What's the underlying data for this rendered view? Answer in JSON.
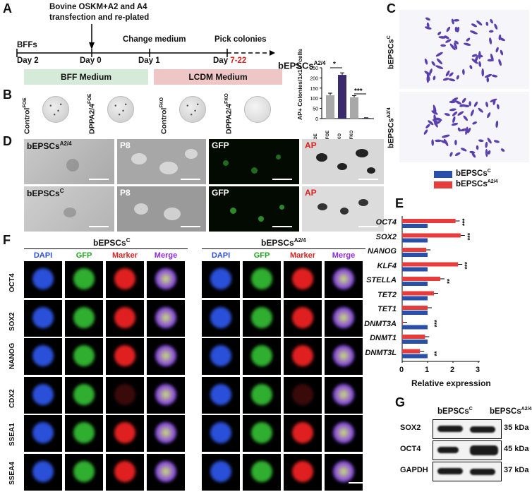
{
  "panel_labels": {
    "a": "A",
    "b": "B",
    "c": "C",
    "d": "D",
    "e": "E",
    "f": "F",
    "g": "G"
  },
  "panelA": {
    "start": "BFFs",
    "transfection_line1": "Bovine OSKM+A2 and A4",
    "transfection_line2": "transfection and re-plated",
    "change_medium": "Change medium",
    "pick_colonies": "Pick colonies",
    "result": "bEPSCs",
    "result_sup": "A2/4",
    "day_minus2": "Day 2",
    "day0": "Day 0",
    "day1": "Day 1",
    "day_pick_prefix": "Day ",
    "day_pick_range": "7-22",
    "bff_medium": "BFF Medium",
    "lcdm_medium": "LCDM  Medium"
  },
  "panelB": {
    "dishes": [
      {
        "name": "Control",
        "sup": "FOE"
      },
      {
        "name": "DPPA2/4",
        "sup": "FOE"
      },
      {
        "name": "Control",
        "sup": "FKO"
      },
      {
        "name": "DPPA2/4",
        "sup": "FKO"
      }
    ],
    "ylabel": "AP+ Colonies/1x10",
    "ylabel_sup": "4",
    "ylabel_tail": " cells",
    "sig1": "*",
    "sig2": "***",
    "yticks": [
      "0",
      "50",
      "100",
      "150",
      "200",
      "250"
    ]
  },
  "chart_data": {
    "type": "bar",
    "categories": [
      "ControlFOE",
      "DPPA2/4FOE",
      "ControlFKO",
      "DPPA2/4FKO"
    ],
    "values": [
      115,
      215,
      105,
      3
    ],
    "errors": [
      10,
      10,
      8,
      1
    ],
    "colors": [
      "#a8a8a8",
      "#3a2a6b",
      "#a8a8a8",
      "#3a2a6b"
    ],
    "ylim": [
      0,
      250
    ]
  },
  "panelC": {
    "top_label": "bEPSCs",
    "top_sup": "C",
    "bottom_label": "bEPSCs",
    "bottom_sup": "A2/4"
  },
  "panelD": {
    "row1_label": "bEPSCs",
    "row1_sup": "A2/4",
    "row2_label": "bEPSCs",
    "row2_sup": "C",
    "p8": "P8",
    "gfp": "GFP",
    "ap": "AP"
  },
  "panelE": {
    "legend": [
      {
        "name": "bEPSCs",
        "sup": "C",
        "color": "#2a4fa8"
      },
      {
        "name": "bEPSCs",
        "sup": "A2/4",
        "color": "#e83b3b"
      }
    ],
    "xlabel": "Relative expression",
    "xticks": [
      "0",
      "1",
      "2",
      "3"
    ],
    "genes": [
      "OCT4",
      "SOX2",
      "NANOG",
      "KLF4",
      "STELLA",
      "TET2",
      "TET1",
      "DNMT3A",
      "DNMT1",
      "DNMT3L"
    ],
    "control": [
      1,
      1,
      1,
      1,
      1,
      1,
      1,
      1,
      1,
      1
    ],
    "treated": [
      2.1,
      2.3,
      0.95,
      2.2,
      1.5,
      1.25,
      1.0,
      0.03,
      0.9,
      0.7
    ],
    "sig": [
      "***",
      "***",
      "",
      "***",
      "**",
      "",
      "",
      "***",
      "",
      "**"
    ]
  },
  "panelF": {
    "group1": "bEPSCs",
    "group1_sup": "C",
    "group2": "bEPSCs",
    "group2_sup": "A2/4",
    "columns": [
      "DAPI",
      "GFP",
      "Marker",
      "Merge"
    ],
    "column_colors": [
      "#2a4fd8",
      "#21a321",
      "#e02020",
      "#8a2be2"
    ],
    "rows": [
      "OCT4",
      "SOX2",
      "NANOG",
      "CDX2",
      "SSEA1",
      "SSEA4"
    ]
  },
  "panelG": {
    "col1": "bEPSCs",
    "col1_sup": "C",
    "col2": "bEPSCs",
    "col2_sup": "A2/4",
    "rows": [
      {
        "name": "SOX2",
        "size": "35 kDa"
      },
      {
        "name": "OCT4",
        "size": "45 kDa"
      },
      {
        "name": "GAPDH",
        "size": "37 kDa"
      }
    ]
  }
}
